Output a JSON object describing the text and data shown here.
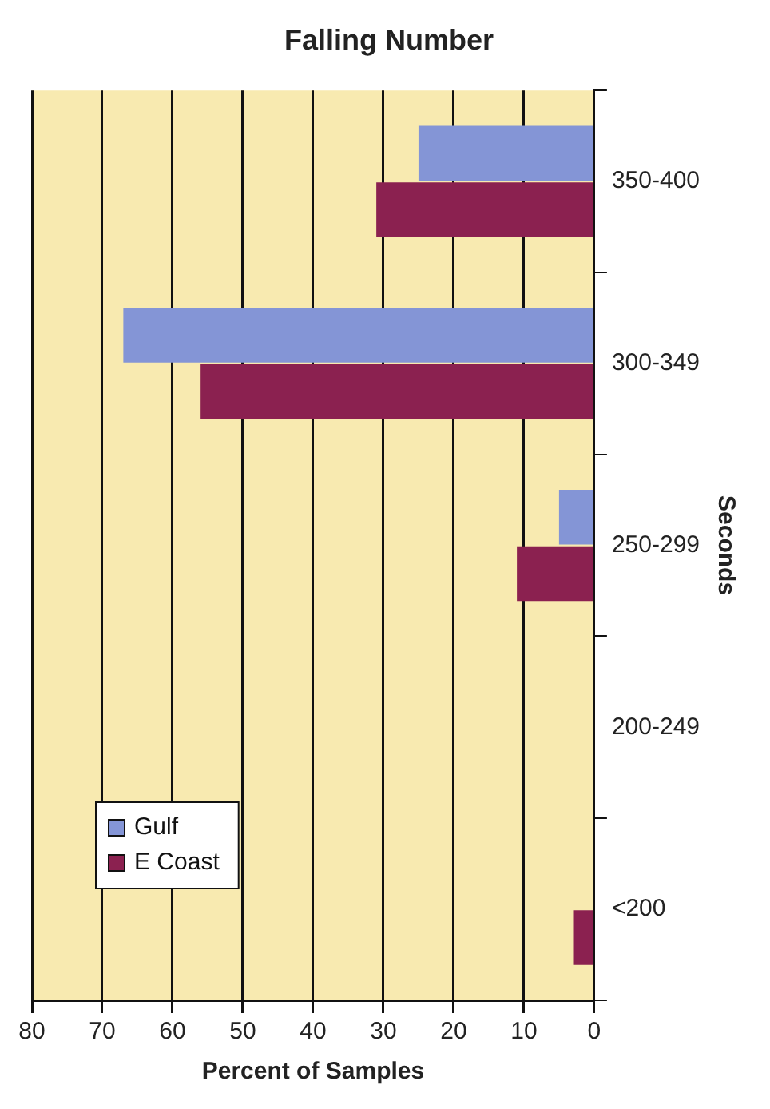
{
  "chart_data": {
    "type": "bar",
    "orientation": "horizontal",
    "title": "Falling Number",
    "xlabel": "Percent of Samples",
    "ylabel": "Seconds",
    "categories": [
      "350-400",
      "300-349",
      "250-299",
      "200-249",
      "<200"
    ],
    "series": [
      {
        "name": "Gulf",
        "color": "#8495d6",
        "values": [
          25,
          67,
          5,
          0,
          0
        ]
      },
      {
        "name": "E Coast",
        "color": "#8b2150",
        "values": [
          31,
          56,
          11,
          0,
          3
        ]
      }
    ],
    "xlim": [
      80,
      0
    ],
    "xticks": [
      80,
      70,
      60,
      50,
      40,
      30,
      20,
      10,
      0
    ],
    "grid": "x",
    "legend": "bottom left"
  }
}
